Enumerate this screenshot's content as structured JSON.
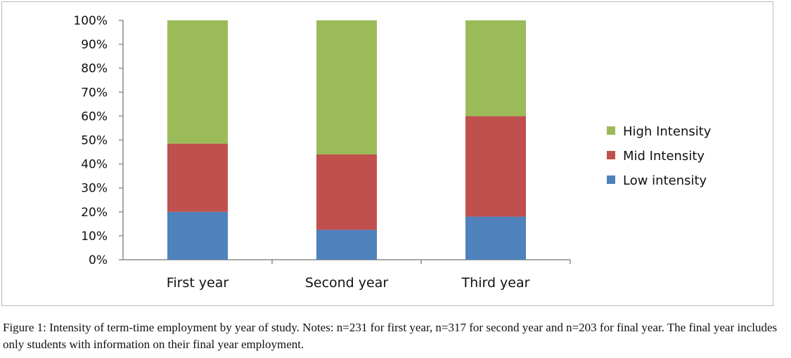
{
  "chart_data": {
    "type": "bar",
    "stacked": true,
    "categories": [
      "First year",
      "Second year",
      "Third year"
    ],
    "series": [
      {
        "name": "Low intensity",
        "values": [
          20,
          12.5,
          18
        ],
        "color": "#4f81bd"
      },
      {
        "name": "Mid Intensity",
        "values": [
          28.5,
          31.5,
          42
        ],
        "color": "#c0504d"
      },
      {
        "name": "High Intensity",
        "values": [
          51.5,
          56,
          40
        ],
        "color": "#9bbb59"
      }
    ],
    "yticks": [
      "0%",
      "10%",
      "20%",
      "30%",
      "40%",
      "50%",
      "60%",
      "70%",
      "80%",
      "90%",
      "100%"
    ],
    "ylim": [
      0,
      100
    ],
    "legend_position": "right",
    "grid": false
  },
  "caption": {
    "label": "Figure 1:",
    "text": " Intensity of term-time employment by year of study. Notes: n=231 for first year, n=317 for second year and n=203 for final year. The final year includes only students with information on their final year employment."
  }
}
